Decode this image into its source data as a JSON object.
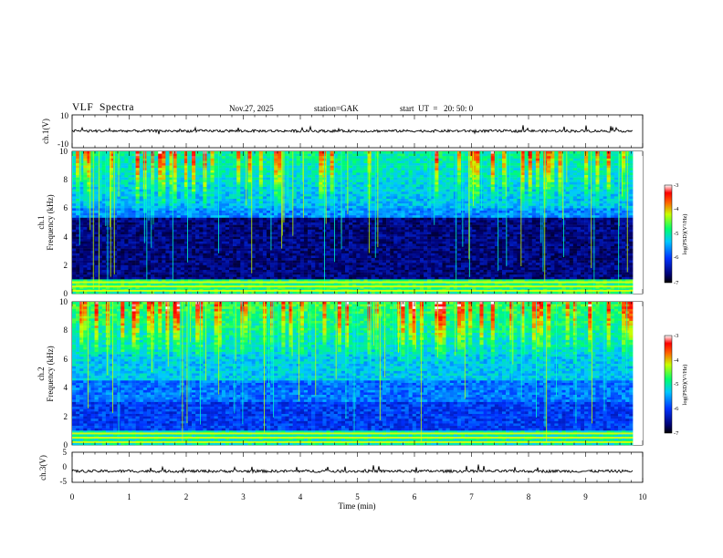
{
  "header": {
    "title": "VLF  Spectra",
    "date": "Nov.27, 2025",
    "station": "station=GAK",
    "start": "start  UT  =   20: 50: 0"
  },
  "chart_data": [
    {
      "type": "line",
      "name": "ch1-waveform",
      "ylabel": "ch.1(V)",
      "yticks": [
        "10",
        "-10"
      ],
      "ylim": [
        -10,
        10
      ],
      "xlim": [
        0,
        10
      ],
      "data_end_min": 9.83,
      "baseline": 0.2
    },
    {
      "type": "heatmap",
      "name": "ch1-spectrogram",
      "ylabel_top": "ch.1",
      "ylabel": "Frequency  (kHz)",
      "yticks": [
        "0",
        "2",
        "4",
        "6",
        "8",
        "10"
      ],
      "ylim": [
        0,
        10
      ],
      "xlim": [
        0,
        10
      ],
      "data_end_min": 9.83,
      "colorbar": {
        "label": "log(PSD)(V²/Hz)",
        "ticks": [
          "-3",
          "-4",
          "-5",
          "-6",
          "-7"
        ],
        "range": [
          -7,
          -3
        ]
      }
    },
    {
      "type": "heatmap",
      "name": "ch2-spectrogram",
      "ylabel_top": "ch.2",
      "ylabel": "Frequency  (kHz)",
      "yticks": [
        "0",
        "2",
        "4",
        "6",
        "8",
        "10"
      ],
      "ylim": [
        0,
        10
      ],
      "xlim": [
        0,
        10
      ],
      "data_end_min": 9.83,
      "colorbar": {
        "label": "log(PSD)(V²/Hz)",
        "ticks": [
          "-3",
          "-4",
          "-5",
          "-6",
          "-7"
        ],
        "range": [
          -7,
          -3
        ]
      }
    },
    {
      "type": "line",
      "name": "ch3-waveform",
      "ylabel": "ch.3(V)",
      "yticks": [
        "5",
        "0",
        "-5"
      ],
      "ylim": [
        -5,
        5
      ],
      "xlim": [
        0,
        10
      ],
      "data_end_min": 9.83,
      "baseline": -1.3
    }
  ],
  "xaxis": {
    "label": "Time  (min)",
    "ticks": [
      "0",
      "1",
      "2",
      "3",
      "4",
      "5",
      "6",
      "7",
      "8",
      "9",
      "10"
    ]
  },
  "colors": {
    "low": "#00006e",
    "mid": "#00c8ff",
    "high": "#ff0000"
  }
}
